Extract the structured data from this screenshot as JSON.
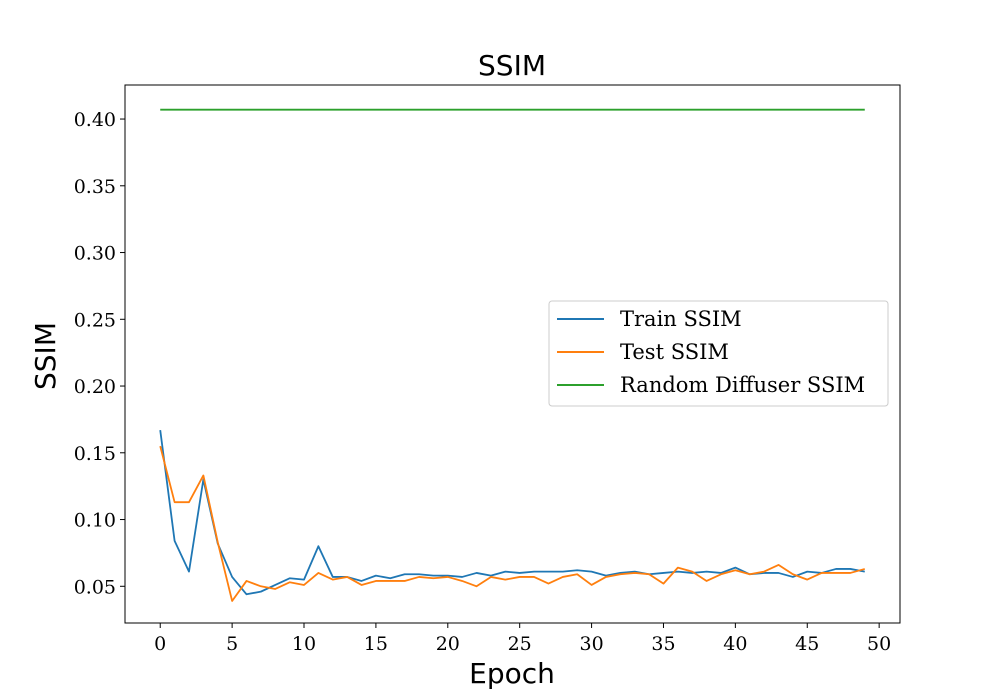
{
  "chart_data": {
    "type": "line",
    "title": "SSIM",
    "xlabel": "Epoch",
    "ylabel": "SSIM",
    "xlim": [
      -2.45,
      51.45
    ],
    "ylim": [
      0.0225,
      0.4255
    ],
    "xticks": [
      0,
      5,
      10,
      15,
      20,
      25,
      30,
      35,
      40,
      45,
      50
    ],
    "yticks": [
      0.05,
      0.1,
      0.15,
      0.2,
      0.25,
      0.3,
      0.35,
      0.4
    ],
    "ytick_labels": [
      "0.05",
      "0.10",
      "0.15",
      "0.20",
      "0.25",
      "0.30",
      "0.35",
      "0.40"
    ],
    "grid": false,
    "legend_position": "center-right",
    "x": [
      0,
      1,
      2,
      3,
      4,
      5,
      6,
      7,
      8,
      9,
      10,
      11,
      12,
      13,
      14,
      15,
      16,
      17,
      18,
      19,
      20,
      21,
      22,
      23,
      24,
      25,
      26,
      27,
      28,
      29,
      30,
      31,
      32,
      33,
      34,
      35,
      36,
      37,
      38,
      39,
      40,
      41,
      42,
      43,
      44,
      45,
      46,
      47,
      48,
      49
    ],
    "series": [
      {
        "name": "Train SSIM",
        "color": "#1f77b4",
        "values": [
          0.167,
          0.084,
          0.061,
          0.13,
          0.082,
          0.057,
          0.044,
          0.046,
          0.051,
          0.056,
          0.055,
          0.08,
          0.057,
          0.057,
          0.054,
          0.058,
          0.056,
          0.059,
          0.059,
          0.058,
          0.058,
          0.057,
          0.06,
          0.058,
          0.061,
          0.06,
          0.061,
          0.061,
          0.061,
          0.062,
          0.061,
          0.058,
          0.06,
          0.061,
          0.059,
          0.06,
          0.061,
          0.06,
          0.061,
          0.06,
          0.064,
          0.059,
          0.06,
          0.06,
          0.057,
          0.061,
          0.06,
          0.063,
          0.063,
          0.061
        ]
      },
      {
        "name": "Test SSIM",
        "color": "#ff7f0e",
        "values": [
          0.155,
          0.113,
          0.113,
          0.133,
          0.083,
          0.039,
          0.054,
          0.05,
          0.048,
          0.053,
          0.051,
          0.06,
          0.055,
          0.057,
          0.051,
          0.054,
          0.054,
          0.054,
          0.057,
          0.056,
          0.057,
          0.054,
          0.05,
          0.057,
          0.055,
          0.057,
          0.057,
          0.052,
          0.057,
          0.059,
          0.051,
          0.057,
          0.059,
          0.06,
          0.059,
          0.052,
          0.064,
          0.061,
          0.054,
          0.059,
          0.062,
          0.059,
          0.061,
          0.066,
          0.059,
          0.055,
          0.06,
          0.06,
          0.06,
          0.063
        ]
      },
      {
        "name": "Random Diffuser SSIM",
        "color": "#2ca02c",
        "values": [
          0.407,
          0.407,
          0.407,
          0.407,
          0.407,
          0.407,
          0.407,
          0.407,
          0.407,
          0.407,
          0.407,
          0.407,
          0.407,
          0.407,
          0.407,
          0.407,
          0.407,
          0.407,
          0.407,
          0.407,
          0.407,
          0.407,
          0.407,
          0.407,
          0.407,
          0.407,
          0.407,
          0.407,
          0.407,
          0.407,
          0.407,
          0.407,
          0.407,
          0.407,
          0.407,
          0.407,
          0.407,
          0.407,
          0.407,
          0.407,
          0.407,
          0.407,
          0.407,
          0.407,
          0.407,
          0.407,
          0.407,
          0.407,
          0.407,
          0.407
        ]
      }
    ]
  }
}
